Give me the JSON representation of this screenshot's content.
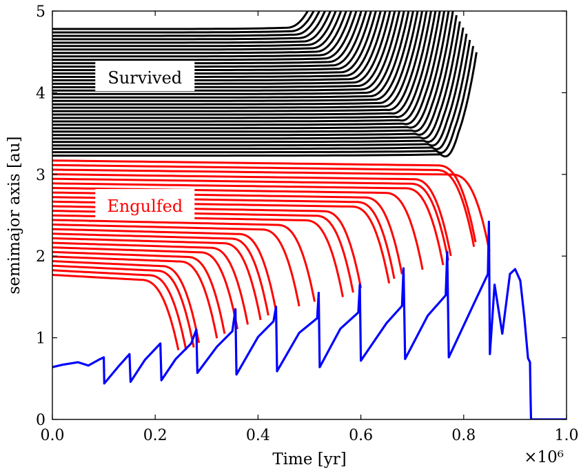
{
  "chart_data": {
    "type": "line",
    "title": "",
    "xlabel": "Time [yr]",
    "ylabel": "semimajor axis [au]",
    "x_multiplier": "×10⁶",
    "xlim": [
      0.0,
      1.0
    ],
    "ylim": [
      0,
      5
    ],
    "xticks": [
      "0.0",
      "0.2",
      "0.4",
      "0.6",
      "0.8",
      "1.0"
    ],
    "yticks": [
      "0",
      "1",
      "2",
      "3",
      "4",
      "5"
    ],
    "colors": {
      "survived": "#000000",
      "engulfed": "#ff0000",
      "star": "#0000ff"
    },
    "annotations": [
      {
        "text": "Survived",
        "color": "#000000"
      },
      {
        "text": "Engulfed",
        "color": "#ff0000"
      }
    ],
    "survived_orbits": {
      "count": 38,
      "a0_min": 3.23,
      "a0_max": 4.78,
      "departure_time_range": [
        0.455,
        0.755
      ]
    },
    "engulfed_orbits": {
      "count": 26,
      "a0_min": 1.77,
      "a0_max": 3.17,
      "engulf_times": [
        0.245,
        0.26,
        0.275,
        0.285,
        0.32,
        0.335,
        0.36,
        0.38,
        0.405,
        0.42,
        0.435,
        0.48,
        0.51,
        0.565,
        0.585,
        0.6,
        0.655,
        0.665,
        0.68,
        0.72,
        0.76,
        0.77,
        0.775,
        0.85,
        0.82,
        0.823
      ]
    },
    "stellar_radius_series": {
      "x": [
        0,
        0.02,
        0.05,
        0.07,
        0.09,
        0.1,
        0.101,
        0.13,
        0.15,
        0.152,
        0.18,
        0.21,
        0.212,
        0.24,
        0.27,
        0.28,
        0.282,
        0.32,
        0.35,
        0.356,
        0.358,
        0.4,
        0.43,
        0.435,
        0.437,
        0.48,
        0.515,
        0.518,
        0.52,
        0.56,
        0.595,
        0.598,
        0.6,
        0.65,
        0.68,
        0.683,
        0.686,
        0.73,
        0.765,
        0.768,
        0.771,
        0.82,
        0.847,
        0.849,
        0.851,
        0.86,
        0.875,
        0.89,
        0.9,
        0.91,
        0.918,
        0.925,
        0.929,
        0.93,
        0.931,
        0.933,
        1.0
      ],
      "y": [
        0.64,
        0.67,
        0.7,
        0.66,
        0.73,
        0.76,
        0.44,
        0.66,
        0.8,
        0.46,
        0.73,
        0.93,
        0.48,
        0.74,
        0.93,
        1.1,
        0.57,
        0.89,
        1.08,
        1.35,
        0.55,
        1.01,
        1.2,
        1.38,
        0.59,
        1.06,
        1.24,
        1.55,
        0.64,
        1.11,
        1.31,
        1.65,
        0.72,
        1.18,
        1.39,
        1.85,
        0.74,
        1.27,
        1.52,
        2.05,
        0.76,
        1.42,
        1.78,
        2.42,
        0.8,
        1.65,
        1.05,
        1.78,
        1.84,
        1.7,
        1.25,
        0.75,
        0.7,
        0.28,
        0.0,
        0.0,
        0.0
      ]
    }
  }
}
